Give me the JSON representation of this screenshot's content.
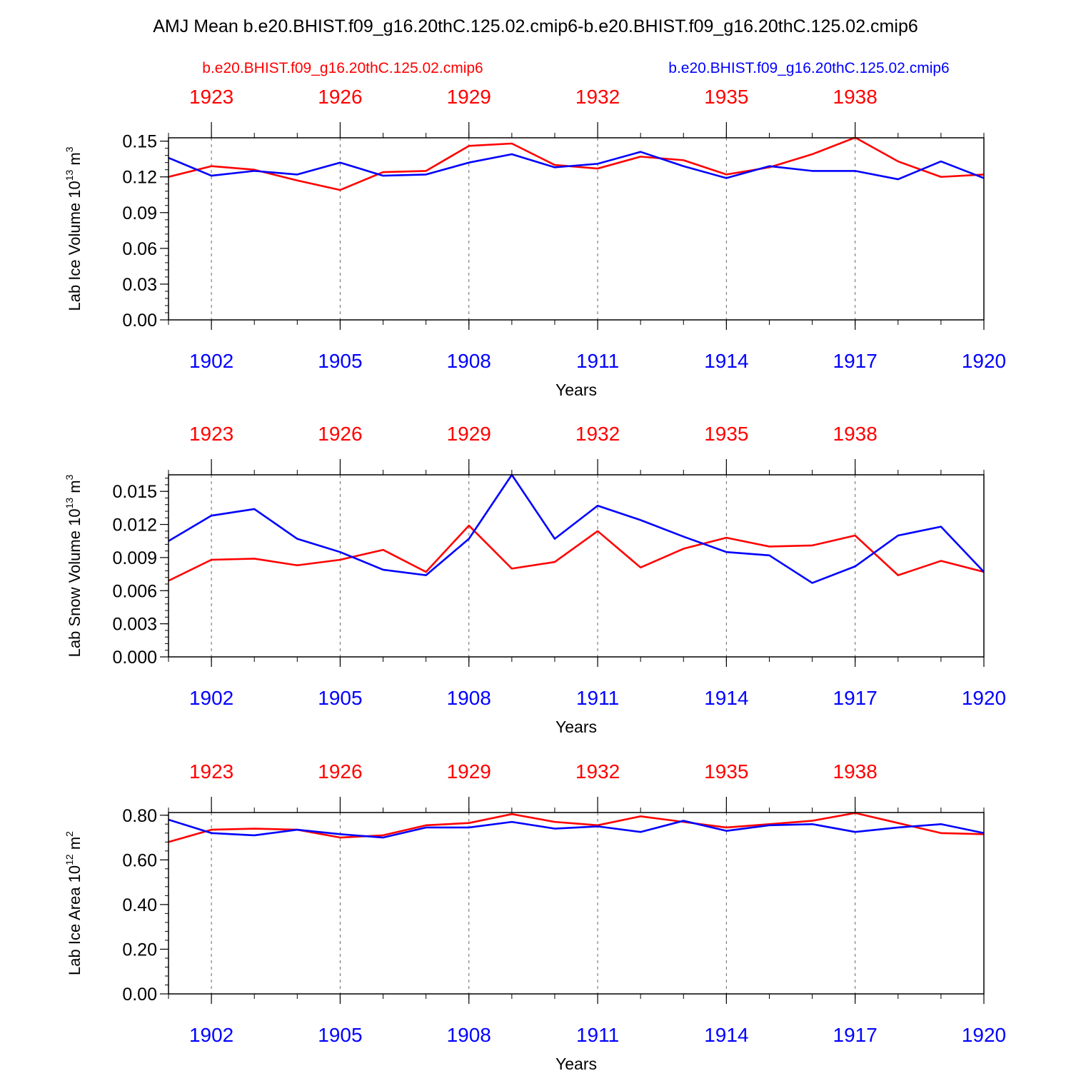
{
  "title": "AMJ Mean b.e20.BHIST.f09_g16.20thC.125.02.cmip6-b.e20.BHIST.f09_g16.20thC.125.02.cmip6",
  "legend": {
    "left": "b.e20.BHIST.f09_g16.20thC.125.02.cmip6",
    "right": "b.e20.BHIST.f09_g16.20thC.125.02.cmip6"
  },
  "colors": {
    "red": "#ff0000",
    "blue": "#0000ff"
  },
  "chart_data": [
    {
      "type": "line",
      "ylabel": "Lab Ice Volume 10",
      "ylabel_exp": "13",
      "ylabel_unit": " m",
      "ylabel_unit_exp": "3",
      "xlabel": "Years",
      "ylim": [
        0,
        0.1528
      ],
      "yticks": [
        "0.00",
        "0.03",
        "0.06",
        "0.09",
        "0.12",
        "0.15"
      ],
      "x_bottom": {
        "min": 1901,
        "max": 1920,
        "ticks": [
          "1902",
          "1905",
          "1908",
          "1911",
          "1914",
          "1917",
          "1920"
        ]
      },
      "x_top": {
        "min": 1922,
        "max": 1941,
        "ticks": [
          "1923",
          "1926",
          "1929",
          "1932",
          "1935",
          "1938"
        ]
      },
      "series": [
        {
          "name": "b.e20.BHIST.f09_g16.20thC.125.02.cmip6",
          "axis": "top",
          "color": "red",
          "values": [
            0.12,
            0.129,
            0.126,
            0.117,
            0.109,
            0.124,
            0.125,
            0.146,
            0.148,
            0.13,
            0.127,
            0.137,
            0.134,
            0.122,
            0.128,
            0.139,
            0.153,
            0.133,
            0.12,
            0.122
          ]
        },
        {
          "name": "b.e20.BHIST.f09_g16.20thC.125.02.cmip6",
          "axis": "bottom",
          "color": "blue",
          "values": [
            0.136,
            0.121,
            0.125,
            0.122,
            0.132,
            0.121,
            0.122,
            0.132,
            0.139,
            0.128,
            0.131,
            0.141,
            0.129,
            0.119,
            0.129,
            0.125,
            0.125,
            0.118,
            0.133,
            0.119
          ]
        }
      ]
    },
    {
      "type": "line",
      "ylabel": "Lab Snow Volume 10",
      "ylabel_exp": "13",
      "ylabel_unit": " m",
      "ylabel_unit_exp": "3",
      "xlabel": "Years",
      "ylim": [
        0,
        0.0165
      ],
      "yticks": [
        "0.000",
        "0.003",
        "0.006",
        "0.009",
        "0.012",
        "0.015"
      ],
      "x_bottom": {
        "min": 1901,
        "max": 1920,
        "ticks": [
          "1902",
          "1905",
          "1908",
          "1911",
          "1914",
          "1917",
          "1920"
        ]
      },
      "x_top": {
        "min": 1922,
        "max": 1941,
        "ticks": [
          "1923",
          "1926",
          "1929",
          "1932",
          "1935",
          "1938"
        ]
      },
      "series": [
        {
          "name": "b.e20.BHIST.f09_g16.20thC.125.02.cmip6",
          "axis": "top",
          "color": "red",
          "values": [
            0.0069,
            0.0088,
            0.0089,
            0.0083,
            0.0088,
            0.0097,
            0.0077,
            0.0119,
            0.008,
            0.0086,
            0.0114,
            0.0081,
            0.0098,
            0.0108,
            0.01,
            0.0101,
            0.011,
            0.0074,
            0.0087,
            0.0077
          ]
        },
        {
          "name": "b.e20.BHIST.f09_g16.20thC.125.02.cmip6",
          "axis": "bottom",
          "color": "blue",
          "values": [
            0.0105,
            0.0128,
            0.0134,
            0.0107,
            0.0095,
            0.0079,
            0.0074,
            0.0107,
            0.0165,
            0.0107,
            0.0137,
            0.0124,
            0.0109,
            0.0095,
            0.0092,
            0.0067,
            0.0082,
            0.011,
            0.0118,
            0.0077
          ]
        }
      ]
    },
    {
      "type": "line",
      "ylabel": "Lab Ice Area 10",
      "ylabel_exp": "12",
      "ylabel_unit": " m",
      "ylabel_unit_exp": "2",
      "xlabel": "Years",
      "ylim": [
        0,
        0.812
      ],
      "yticks": [
        "0.00",
        "0.20",
        "0.40",
        "0.60",
        "0.80"
      ],
      "x_bottom": {
        "min": 1901,
        "max": 1920,
        "ticks": [
          "1902",
          "1905",
          "1908",
          "1911",
          "1914",
          "1917",
          "1920"
        ]
      },
      "x_top": {
        "min": 1922,
        "max": 1941,
        "ticks": [
          "1923",
          "1926",
          "1929",
          "1932",
          "1935",
          "1938"
        ]
      },
      "series": [
        {
          "name": "b.e20.BHIST.f09_g16.20thC.125.02.cmip6",
          "axis": "top",
          "color": "red",
          "values": [
            0.68,
            0.735,
            0.74,
            0.735,
            0.7,
            0.71,
            0.755,
            0.765,
            0.805,
            0.77,
            0.755,
            0.795,
            0.77,
            0.745,
            0.76,
            0.775,
            0.81,
            0.765,
            0.72,
            0.715
          ]
        },
        {
          "name": "b.e20.BHIST.f09_g16.20thC.125.02.cmip6",
          "axis": "bottom",
          "color": "blue",
          "values": [
            0.78,
            0.72,
            0.71,
            0.735,
            0.715,
            0.7,
            0.745,
            0.745,
            0.77,
            0.74,
            0.75,
            0.725,
            0.775,
            0.73,
            0.755,
            0.76,
            0.725,
            0.745,
            0.76,
            0.72
          ]
        }
      ]
    }
  ]
}
